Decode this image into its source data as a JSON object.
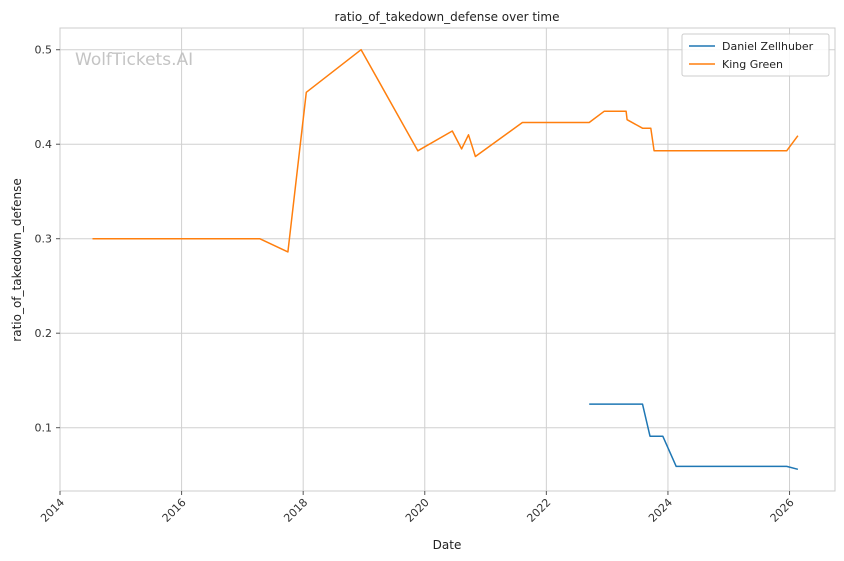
{
  "watermark": "WolfTickets.AI",
  "chart_data": {
    "type": "line",
    "title": "ratio_of_takedown_defense over time",
    "xlabel": "Date",
    "ylabel": "ratio_of_takedown_defense",
    "xlim": [
      "2014-01-01",
      "2026-10-01"
    ],
    "ylim": [
      0.033,
      0.523
    ],
    "x_ticks": [
      "2014",
      "2016",
      "2018",
      "2020",
      "2022",
      "2024",
      "2026"
    ],
    "y_ticks": [
      "0.1",
      "0.2",
      "0.3",
      "0.4",
      "0.5"
    ],
    "grid": true,
    "legend_position": "top-right",
    "series": [
      {
        "name": "Daniel Zellhuber",
        "color": "#1f77b4",
        "points": [
          [
            "2022-09-15",
            0.125
          ],
          [
            "2023-08-01",
            0.125
          ],
          [
            "2023-09-15",
            0.091
          ],
          [
            "2023-12-01",
            0.091
          ],
          [
            "2024-02-20",
            0.059
          ],
          [
            "2025-12-15",
            0.059
          ],
          [
            "2026-02-20",
            0.056
          ]
        ]
      },
      {
        "name": "King Green",
        "color": "#ff7f0e",
        "points": [
          [
            "2014-07-15",
            0.3
          ],
          [
            "2017-04-15",
            0.3
          ],
          [
            "2017-10-01",
            0.286
          ],
          [
            "2018-01-20",
            0.455
          ],
          [
            "2018-12-15",
            0.5
          ],
          [
            "2019-11-20",
            0.393
          ],
          [
            "2020-06-15",
            0.414
          ],
          [
            "2020-08-10",
            0.395
          ],
          [
            "2020-09-20",
            0.41
          ],
          [
            "2020-11-01",
            0.387
          ],
          [
            "2021-08-10",
            0.423
          ],
          [
            "2022-09-15",
            0.423
          ],
          [
            "2022-12-15",
            0.435
          ],
          [
            "2023-04-25",
            0.435
          ],
          [
            "2023-05-01",
            0.426
          ],
          [
            "2023-08-01",
            0.417
          ],
          [
            "2023-09-20",
            0.417
          ],
          [
            "2023-10-10",
            0.393
          ],
          [
            "2025-12-15",
            0.393
          ],
          [
            "2026-02-20",
            0.409
          ]
        ]
      }
    ]
  }
}
